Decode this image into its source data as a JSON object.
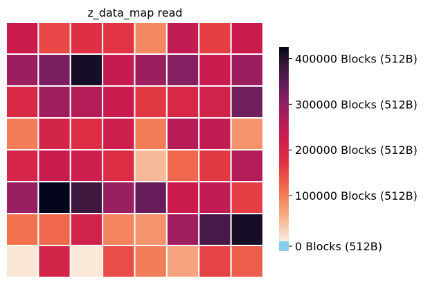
{
  "chart_data": {
    "type": "heatmap",
    "title": "z_data_map read",
    "xlabel": "",
    "ylabel": "",
    "grid": false,
    "legend": "colorbar-right",
    "value_unit": "Blocks (512B)",
    "vmin": 0,
    "vmax": 425000,
    "colormap": "rocket_r",
    "under_color": "#87ceeb",
    "colorbar_ticks": [
      {
        "value": 0,
        "label": "0 Blocks (512B)"
      },
      {
        "value": 100000,
        "label": "100000 Blocks (512B)"
      },
      {
        "value": 200000,
        "label": "200000 Blocks (512B)"
      },
      {
        "value": 300000,
        "label": "300000 Blocks (512B)"
      },
      {
        "value": 400000,
        "label": "400000 Blocks (512B)"
      }
    ],
    "rows": 8,
    "cols": 8,
    "values": [
      [
        235000,
        150000,
        180000,
        170000,
        90000,
        245000,
        160000,
        235000
      ],
      [
        285000,
        320000,
        410000,
        240000,
        285000,
        310000,
        235000,
        285000
      ],
      [
        195000,
        280000,
        260000,
        235000,
        165000,
        200000,
        215000,
        330000
      ],
      [
        100000,
        210000,
        185000,
        225000,
        100000,
        255000,
        245000,
        80000
      ],
      [
        205000,
        235000,
        225000,
        185000,
        45000,
        120000,
        165000,
        260000
      ],
      [
        290000,
        425000,
        380000,
        290000,
        340000,
        230000,
        245000,
        160000
      ],
      [
        110000,
        120000,
        215000,
        95000,
        80000,
        280000,
        370000,
        410000
      ],
      [
        5000,
        210000,
        3000,
        145000,
        100000,
        65000,
        155000,
        130000
      ]
    ]
  }
}
